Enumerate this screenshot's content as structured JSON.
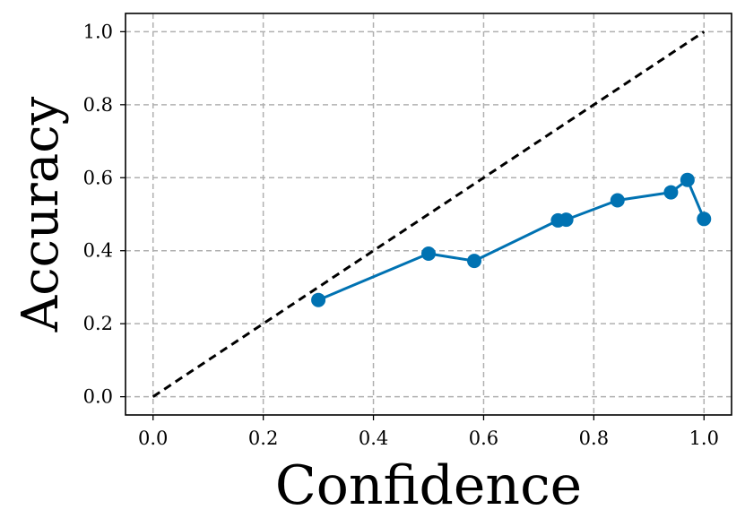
{
  "chart_data": {
    "type": "line",
    "xlabel": "Confidence",
    "ylabel": "Accuracy",
    "xlim": [
      -0.05,
      1.05
    ],
    "ylim": [
      -0.05,
      1.05
    ],
    "xticks": [
      "0.0",
      "0.2",
      "0.4",
      "0.6",
      "0.8",
      "1.0"
    ],
    "yticks": [
      "0.0",
      "0.2",
      "0.4",
      "0.6",
      "0.8",
      "1.0"
    ],
    "grid": true,
    "grid_style": "dashed",
    "series": [
      {
        "style": "solid-with-markers",
        "color": "#0072b2",
        "x": [
          0.3,
          0.5,
          0.583,
          0.735,
          0.75,
          0.843,
          0.94,
          0.97,
          1.0
        ],
        "y": [
          0.265,
          0.392,
          0.372,
          0.483,
          0.485,
          0.538,
          0.56,
          0.594,
          0.487
        ]
      },
      {
        "style": "dashed",
        "color": "#000000",
        "x": [
          0.0,
          1.0
        ],
        "y": [
          0.0,
          1.0
        ]
      }
    ]
  }
}
